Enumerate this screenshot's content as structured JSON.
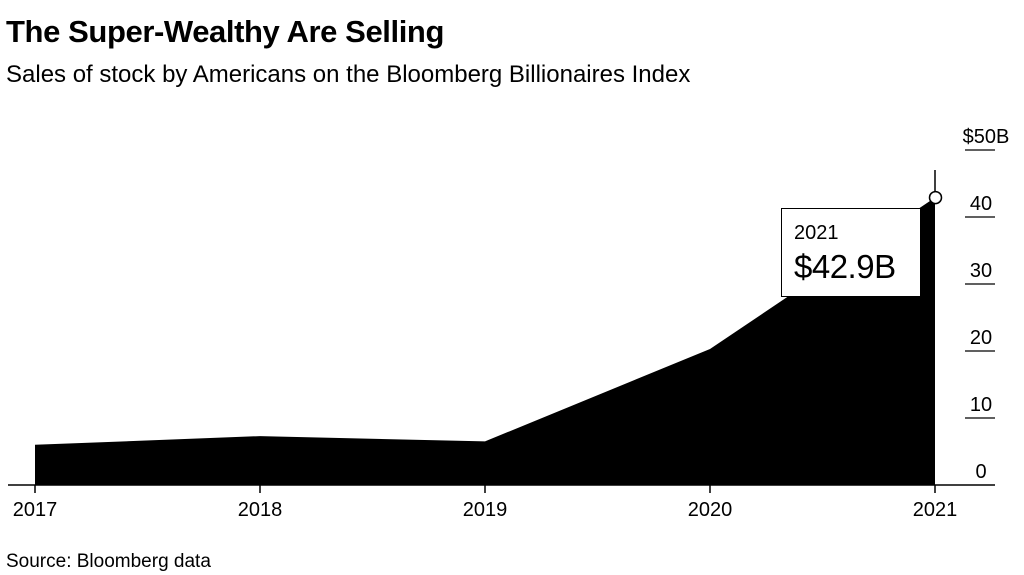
{
  "title": "The Super-Wealthy Are Selling",
  "subtitle": "Sales of stock by Americans on the Bloomberg Billionaires Index",
  "source": "Source: Bloomberg data",
  "colors": {
    "area": "#000000",
    "background": "#ffffff",
    "axis": "#000000"
  },
  "annotation": {
    "year": "2021",
    "value": "$42.9B"
  },
  "chart_data": {
    "type": "area",
    "title": "The Super-Wealthy Are Selling",
    "subtitle": "Sales of stock by Americans on the Bloomberg Billionaires Index",
    "x": [
      "2017",
      "2018",
      "2019",
      "2020",
      "2021"
    ],
    "series": [
      {
        "values": [
          6,
          7.3,
          6.5,
          20.3,
          42.9
        ]
      }
    ],
    "ylim": [
      0,
      50
    ],
    "yticks": [
      0,
      10,
      20,
      30,
      40,
      50
    ],
    "ytick_labels": [
      "0",
      "10",
      "20",
      "30",
      "40",
      "$50B"
    ],
    "y_axis_position": "right",
    "grid": false,
    "annotations": [
      {
        "x": "2021",
        "text": "$42.9B",
        "label": "2021"
      }
    ]
  }
}
